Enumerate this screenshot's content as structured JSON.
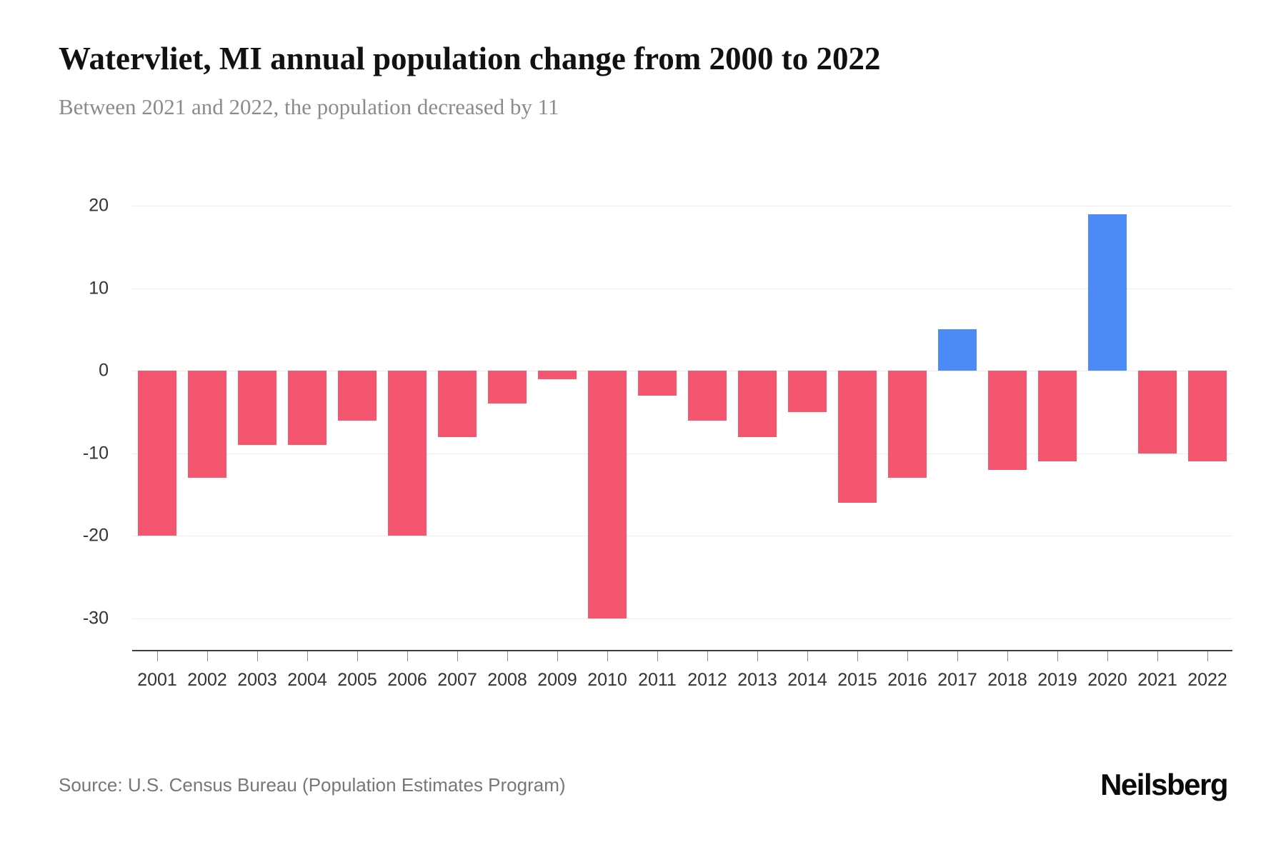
{
  "header": {
    "title": "Watervliet, MI annual population change from 2000 to 2022",
    "subtitle": "Between 2021 and 2022, the population decreased by 11"
  },
  "footer": {
    "source": "Source: U.S. Census Bureau (Population Estimates Program)",
    "brand": "Neilsberg"
  },
  "chart_data": {
    "type": "bar",
    "title": "Watervliet, MI annual population change from 2000 to 2022",
    "xlabel": "",
    "ylabel": "",
    "categories": [
      "2001",
      "2002",
      "2003",
      "2004",
      "2005",
      "2006",
      "2007",
      "2008",
      "2009",
      "2010",
      "2011",
      "2012",
      "2013",
      "2014",
      "2015",
      "2016",
      "2017",
      "2018",
      "2019",
      "2020",
      "2021",
      "2022"
    ],
    "values": [
      -20,
      -13,
      -9,
      -9,
      -6,
      -20,
      -8,
      -4,
      -1,
      -30,
      -3,
      -6,
      -8,
      -5,
      -16,
      -13,
      5,
      -12,
      -11,
      19,
      -10,
      -11
    ],
    "ylim": [
      -30,
      20
    ],
    "yticks": [
      20,
      10,
      0,
      -10,
      -20,
      -30
    ],
    "grid": true,
    "legend": false,
    "negative_color": "#f4566f",
    "positive_color": "#4c8bf5"
  }
}
